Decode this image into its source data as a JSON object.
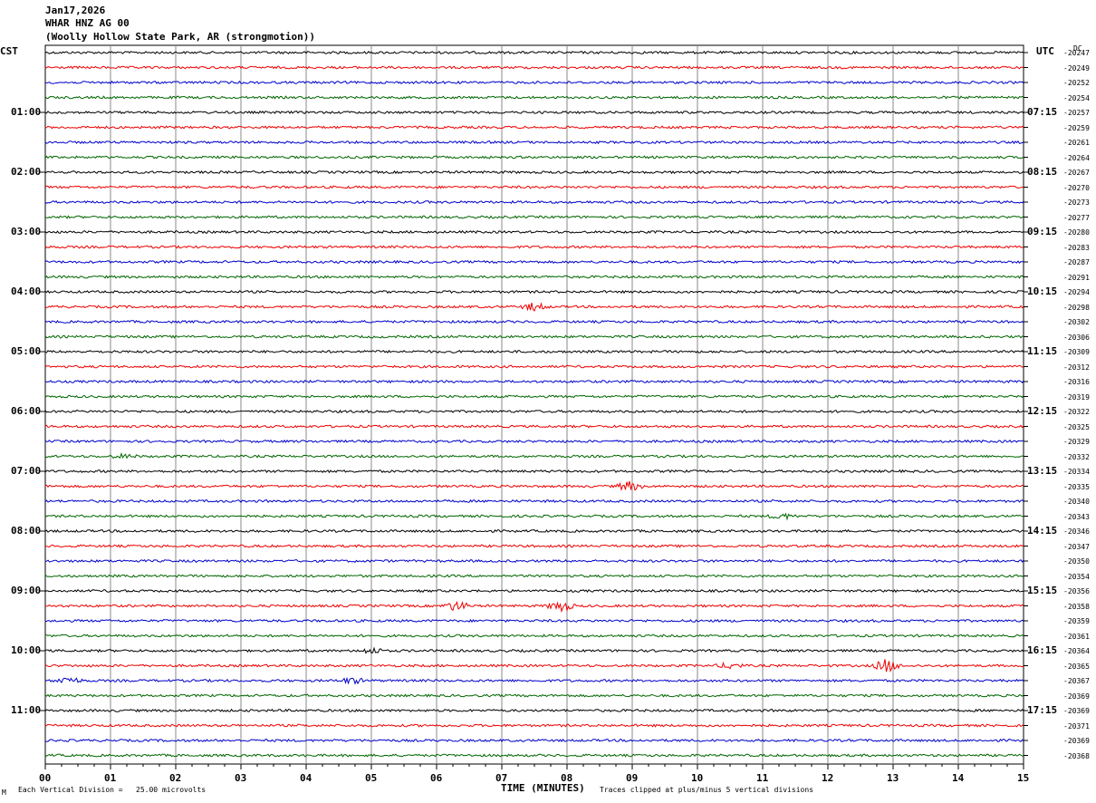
{
  "header": {
    "date": "Jan17,2026",
    "station": "WHAR HNZ AG 00",
    "location": "(Woolly Hollow State Park, AR (strongmotion))"
  },
  "axes": {
    "left_tz": "CST",
    "right_tz": "UTC",
    "dc_label": "DC",
    "xlabel": "TIME (MINUTES)"
  },
  "footer": {
    "mark": "Μ",
    "division": "Each Vertical Division =   25.00 microvolts",
    "clip": "Traces clipped at plus/minus 5 vertical divisions"
  },
  "colors": [
    "#000000",
    "#ee0000",
    "#0000cc",
    "#006600"
  ],
  "chart_data": {
    "type": "line",
    "title": "WHAR HNZ AG 00",
    "xlabel": "TIME (MINUTES)",
    "xlim": [
      0,
      15
    ],
    "x_ticks": [
      "00",
      "01",
      "02",
      "03",
      "04",
      "05",
      "06",
      "07",
      "08",
      "09",
      "10",
      "11",
      "12",
      "13",
      "14",
      "15"
    ],
    "left_hour_labels": [
      "01:00",
      "02:00",
      "03:00",
      "04:00",
      "05:00",
      "06:00",
      "07:00",
      "08:00",
      "09:00",
      "10:00",
      "11:00"
    ],
    "right_hour_labels": [
      "07:15",
      "08:15",
      "09:15",
      "10:15",
      "11:15",
      "12:15",
      "13:15",
      "14:15",
      "15:15",
      "16:15",
      "17:15"
    ],
    "dc_offsets": [
      "-20247",
      "-20249",
      "-20252",
      "-20254",
      "-20257",
      "-20259",
      "-20261",
      "-20264",
      "-20267",
      "-20270",
      "-20273",
      "-20277",
      "-20280",
      "-20283",
      "-20287",
      "-20291",
      "-20294",
      "-20298",
      "-20302",
      "-20306",
      "-20309",
      "-20312",
      "-20316",
      "-20319",
      "-20322",
      "-20325",
      "-20329",
      "-20332",
      "-20334",
      "-20335",
      "-20340",
      "-20343",
      "-20346",
      "-20347",
      "-20350",
      "-20354",
      "-20356",
      "-20358",
      "-20359",
      "-20361",
      "-20364",
      "-20365",
      "-20367",
      "-20369",
      "-20369",
      "-20371",
      "-20369",
      "-20368"
    ],
    "traces": 48,
    "grid": true,
    "events": [
      {
        "trace": 17,
        "minute": 7.5,
        "amplitude": 4
      },
      {
        "trace": 27,
        "minute": 1.2,
        "amplitude": 2
      },
      {
        "trace": 29,
        "minute": 8.95,
        "amplitude": 5
      },
      {
        "trace": 31,
        "minute": 11.3,
        "amplitude": 3
      },
      {
        "trace": 37,
        "minute": 7.9,
        "amplitude": 6
      },
      {
        "trace": 37,
        "minute": 6.3,
        "amplitude": 5
      },
      {
        "trace": 40,
        "minute": 5.0,
        "amplitude": 3
      },
      {
        "trace": 41,
        "minute": 12.9,
        "amplitude": 7
      },
      {
        "trace": 41,
        "minute": 10.5,
        "amplitude": 3
      },
      {
        "trace": 42,
        "minute": 0.35,
        "amplitude": 4
      },
      {
        "trace": 42,
        "minute": 4.7,
        "amplitude": 3
      }
    ]
  }
}
